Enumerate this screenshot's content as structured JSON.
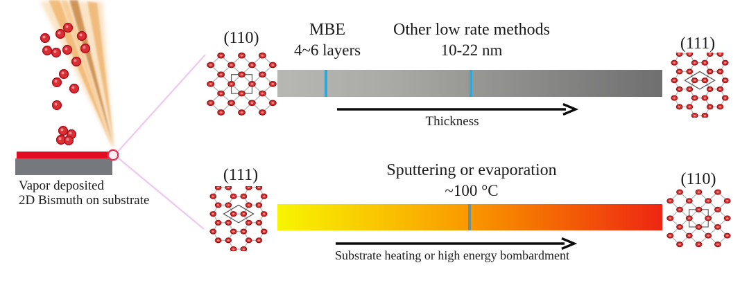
{
  "left_panel": {
    "caption_line1": "Vapor deposited",
    "caption_line2": "2D Bismuth on substrate"
  },
  "top_track": {
    "left_crystal": {
      "label": "(110)",
      "lattice": "square"
    },
    "right_crystal": {
      "label": "(111)",
      "lattice": "honeycomb"
    },
    "annotation_mbe": {
      "line1": "MBE",
      "line2": "4~6 layers"
    },
    "annotation_other": {
      "line1": "Other low rate methods",
      "line2": "10-22 nm"
    },
    "arrow_label": "Thickness",
    "bar": {
      "gradient": [
        "#b7b7b3 0%",
        "#a9a9a5 30%",
        "#8e8e8c 62%",
        "#6f6f6f 100%"
      ],
      "tick_color": "#2fa7d9",
      "ticks_pct": [
        12.3,
        49.9
      ]
    }
  },
  "bottom_track": {
    "left_crystal": {
      "label": "(111)",
      "lattice": "honeycomb"
    },
    "right_crystal": {
      "label": "(110)",
      "lattice": "square"
    },
    "annotation": {
      "line1": "Sputtering or evaporation",
      "line2": "~100 °C"
    },
    "arrow_label": "Substrate heating or high energy bombardment",
    "bar": {
      "gradient": [
        "#f7f500 0%",
        "#f9c800 25%",
        "#fa9e00 47%",
        "#f67d00 62%",
        "#ee2512 100%"
      ],
      "tick_color": "#6a9294",
      "ticks_pct": [
        49.5
      ]
    }
  },
  "colors": {
    "atom_fill": "#d63030",
    "atom_stroke": "#9b1616",
    "atom_highlight": "#f29a9a",
    "bond": "#b2bcbe",
    "unit_cell": "#5a5a5a",
    "film": "#e30b21",
    "substrate": "#75797e",
    "fan_line": "#ecc6ee",
    "zoom_ring": "#e73350"
  }
}
